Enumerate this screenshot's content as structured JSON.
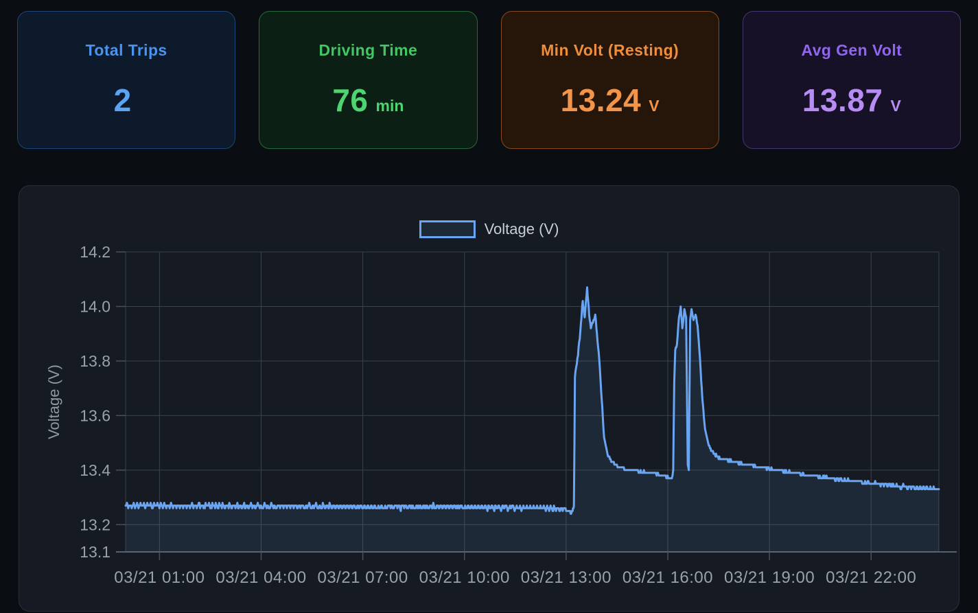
{
  "cards": [
    {
      "id": "total-trips",
      "title": "Total Trips",
      "value": "2",
      "unit": "",
      "title_color": "#4a93ee",
      "value_color": "#5ba4f2",
      "bg": "#0c1a2c",
      "border": "#1e4578"
    },
    {
      "id": "driving-time",
      "title": "Driving Time",
      "value": "76",
      "unit": "min",
      "title_color": "#42c765",
      "value_color": "#4ed571",
      "bg": "#0c1f15",
      "border": "#266b3b"
    },
    {
      "id": "min-volt-resting",
      "title": "Min Volt (Resting)",
      "value": "13.24",
      "unit": "V",
      "title_color": "#ee8e3c",
      "value_color": "#f29449",
      "bg": "#261509",
      "border": "#8a4a1f"
    },
    {
      "id": "avg-gen-volt",
      "title": "Avg Gen Volt",
      "value": "13.87",
      "unit": "V",
      "title_color": "#9066ec",
      "value_color": "#b78df3",
      "bg": "#161127",
      "border": "#453672"
    }
  ],
  "chart_data": {
    "type": "line",
    "title": "",
    "ylabel": "Voltage (V)",
    "xlabel": "",
    "ylim": [
      13.1,
      14.2
    ],
    "yticks": [
      14.2,
      14.0,
      13.8,
      13.6,
      13.4,
      13.2,
      13.1
    ],
    "xlim_hours": [
      0,
      24
    ],
    "xticks": [
      {
        "hour": 1,
        "label": "03/21 01:00"
      },
      {
        "hour": 4,
        "label": "03/21 04:00"
      },
      {
        "hour": 7,
        "label": "03/21 07:00"
      },
      {
        "hour": 10,
        "label": "03/21 10:00"
      },
      {
        "hour": 13,
        "label": "03/21 13:00"
      },
      {
        "hour": 16,
        "label": "03/21 16:00"
      },
      {
        "hour": 19,
        "label": "03/21 19:00"
      },
      {
        "hour": 22,
        "label": "03/21 22:00"
      }
    ],
    "grid": true,
    "legend_position": "top",
    "style": {
      "grid": "#3b424b",
      "axis_line": "#5a616b",
      "tick_mark": "#4a515b",
      "tick_text": "#99a1ab",
      "axis_title_text": "#8f97a1",
      "legend_text": "#c8ced5",
      "panel_bg": "#161b23",
      "panel_border": "#2a3039"
    },
    "series": [
      {
        "name": "Voltage (V)",
        "color": "#69a5f2",
        "fill": "rgba(105,165,242,0.10)",
        "line_width": 3,
        "quantization_v": 0.01,
        "keypoints": [
          [
            0.0,
            13.27
          ],
          [
            1.5,
            13.268
          ],
          [
            3.0,
            13.27
          ],
          [
            4.5,
            13.266
          ],
          [
            6.0,
            13.268
          ],
          [
            7.5,
            13.264
          ],
          [
            9.0,
            13.266
          ],
          [
            10.5,
            13.263
          ],
          [
            12.0,
            13.262
          ],
          [
            13.0,
            13.257
          ],
          [
            13.1,
            13.248
          ],
          [
            13.15,
            13.242
          ],
          [
            13.19,
            13.252
          ],
          [
            13.23,
            13.27
          ],
          [
            13.26,
            13.74
          ],
          [
            13.3,
            13.78
          ],
          [
            13.35,
            13.82
          ],
          [
            13.42,
            13.91
          ],
          [
            13.49,
            14.02
          ],
          [
            13.55,
            13.96
          ],
          [
            13.62,
            14.07
          ],
          [
            13.68,
            13.97
          ],
          [
            13.73,
            13.92
          ],
          [
            13.79,
            13.94
          ],
          [
            13.86,
            13.965
          ],
          [
            13.91,
            13.9
          ],
          [
            13.98,
            13.8
          ],
          [
            14.05,
            13.66
          ],
          [
            14.12,
            13.52
          ],
          [
            14.22,
            13.46
          ],
          [
            14.35,
            13.43
          ],
          [
            14.5,
            13.415
          ],
          [
            14.72,
            13.403
          ],
          [
            15.1,
            13.396
          ],
          [
            15.55,
            13.39
          ],
          [
            15.85,
            13.38
          ],
          [
            16.05,
            13.372
          ],
          [
            16.12,
            13.366
          ],
          [
            16.16,
            13.4
          ],
          [
            16.19,
            13.72
          ],
          [
            16.22,
            13.84
          ],
          [
            16.27,
            13.86
          ],
          [
            16.33,
            13.96
          ],
          [
            16.38,
            14.0
          ],
          [
            16.43,
            13.92
          ],
          [
            16.49,
            13.99
          ],
          [
            16.54,
            13.96
          ],
          [
            16.59,
            13.42
          ],
          [
            16.62,
            13.4
          ],
          [
            16.66,
            13.95
          ],
          [
            16.7,
            13.99
          ],
          [
            16.76,
            13.95
          ],
          [
            16.82,
            13.97
          ],
          [
            16.88,
            13.93
          ],
          [
            16.95,
            13.81
          ],
          [
            17.02,
            13.66
          ],
          [
            17.1,
            13.55
          ],
          [
            17.21,
            13.49
          ],
          [
            17.35,
            13.46
          ],
          [
            17.52,
            13.445
          ],
          [
            17.8,
            13.435
          ],
          [
            18.15,
            13.425
          ],
          [
            18.55,
            13.415
          ],
          [
            19.0,
            13.405
          ],
          [
            19.45,
            13.395
          ],
          [
            19.9,
            13.386
          ],
          [
            20.35,
            13.378
          ],
          [
            20.8,
            13.37
          ],
          [
            21.3,
            13.362
          ],
          [
            21.8,
            13.355
          ],
          [
            22.3,
            13.348
          ],
          [
            22.85,
            13.34
          ],
          [
            23.4,
            13.334
          ],
          [
            24.0,
            13.33
          ]
        ],
        "noise_segments": [
          {
            "t0": 0.0,
            "t1": 13.05,
            "amp": 0.011
          },
          {
            "t0": 13.05,
            "t1": 13.23,
            "amp": 0.003
          },
          {
            "t0": 13.23,
            "t1": 13.95,
            "amp": 0.004
          },
          {
            "t0": 13.95,
            "t1": 16.12,
            "amp": 0.0025
          },
          {
            "t0": 16.12,
            "t1": 16.9,
            "amp": 0.004
          },
          {
            "t0": 16.9,
            "t1": 18.4,
            "amp": 0.003
          },
          {
            "t0": 18.4,
            "t1": 20.4,
            "amp": 0.004
          },
          {
            "t0": 20.4,
            "t1": 22.4,
            "amp": 0.006
          },
          {
            "t0": 22.4,
            "t1": 24.01,
            "amp": 0.008
          }
        ]
      }
    ]
  }
}
